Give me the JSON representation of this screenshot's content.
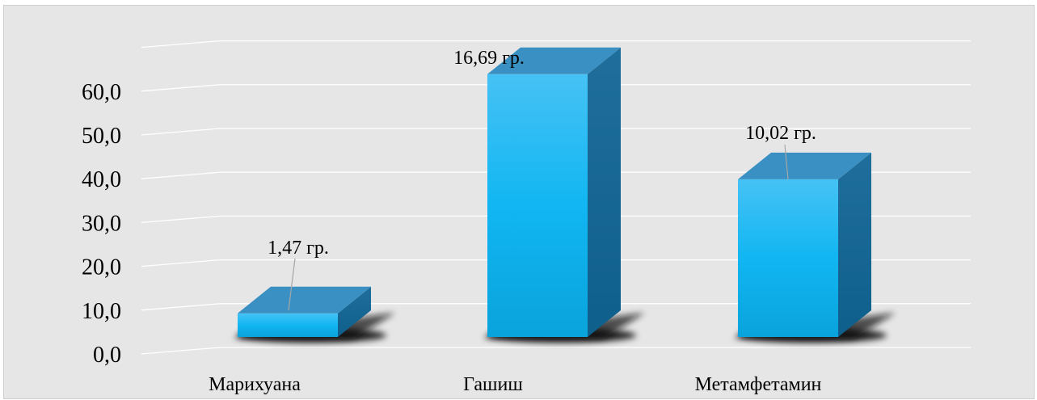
{
  "chart_data": {
    "type": "bar",
    "style": "3d-column",
    "categories": [
      "Марихуана",
      "Гашиш",
      "Метамфетамин"
    ],
    "values": [
      5.4,
      60.0,
      36.0
    ],
    "data_labels": [
      "1,47 гр.",
      "16,69 гр.",
      "10,02 гр."
    ],
    "y_ticks": [
      "0,0",
      "10,0",
      "20,0",
      "30,0",
      "40,0",
      "50,0",
      "60,0"
    ],
    "ylim": [
      0,
      70
    ],
    "grid": true,
    "legend": "none",
    "title": "",
    "xlabel": "",
    "ylabel": "",
    "colors": {
      "background": "#e6e6e6",
      "gridline": "#ffffff",
      "bar_front_top": "#46c2f5",
      "bar_front_bottom": "#0aa3dc",
      "bar_top": "#3a90c2",
      "bar_side": "#1f6e9c"
    }
  }
}
